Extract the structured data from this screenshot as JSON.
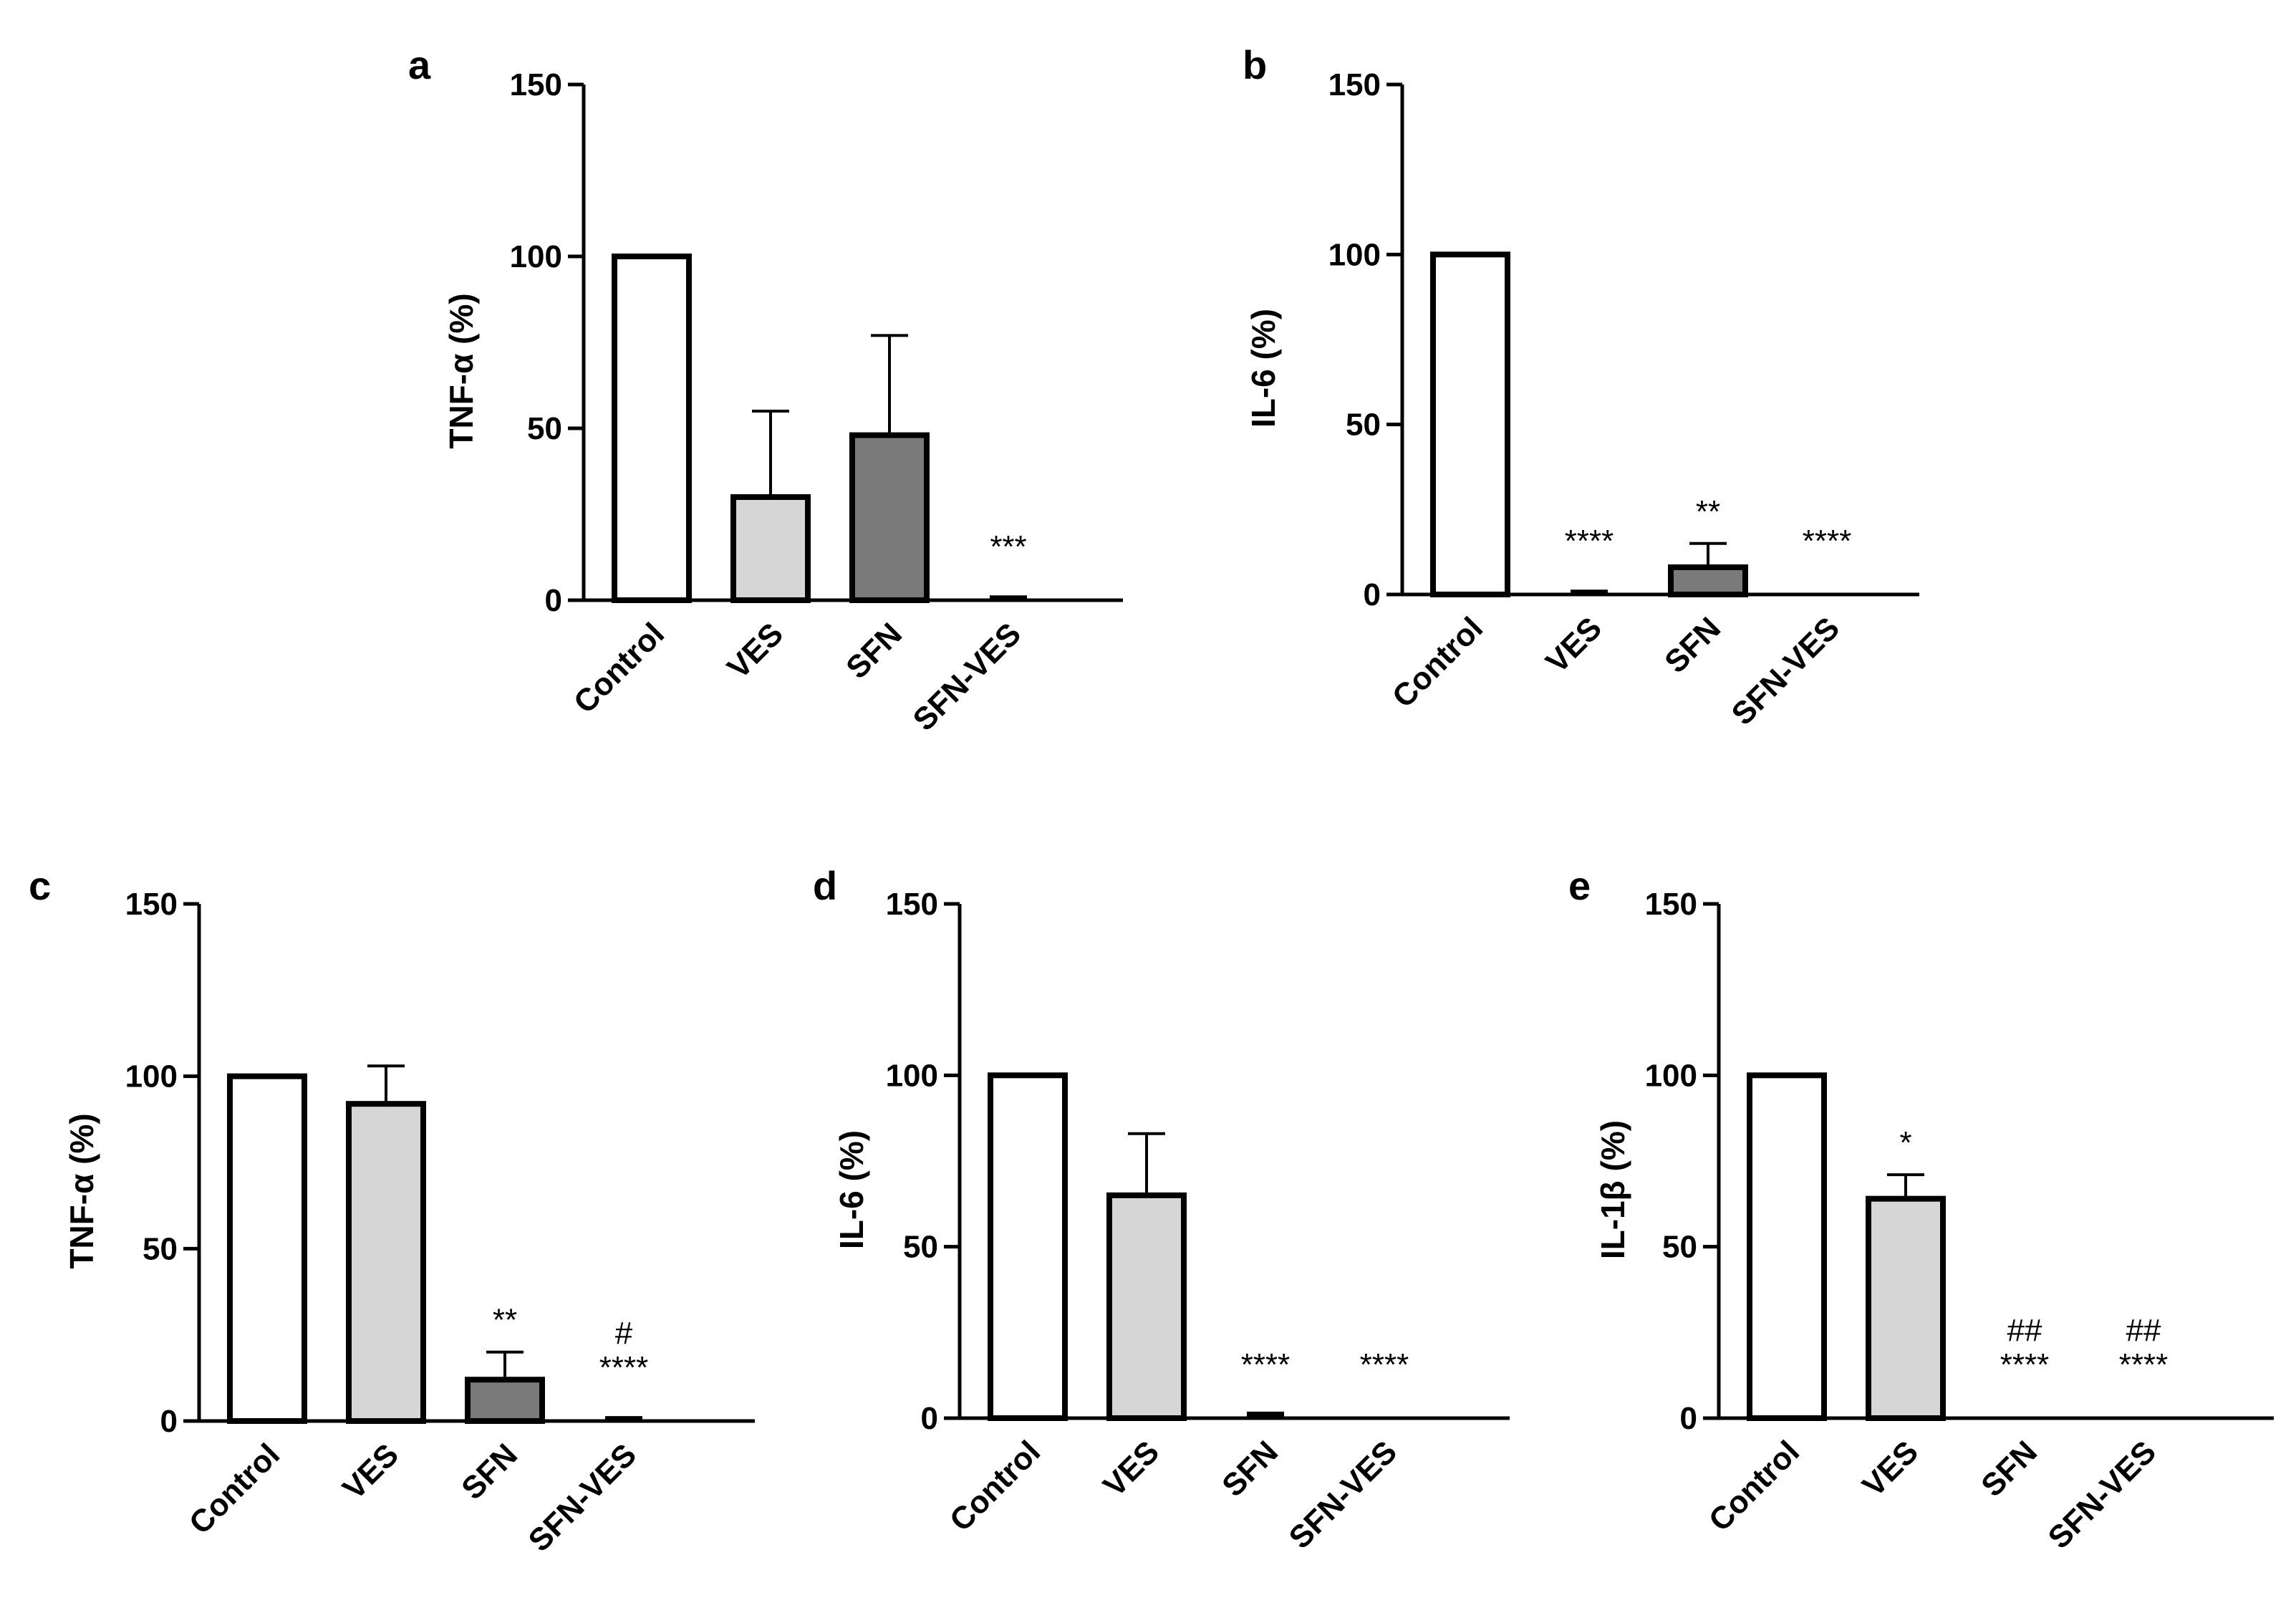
{
  "figure": {
    "style": {
      "fills": {
        "white": "#ffffff",
        "light": "#d6d6d6",
        "dark": "#7a7a7a"
      },
      "stroke": "#000000"
    }
  },
  "chart_data": [
    {
      "panel": "a",
      "type": "bar",
      "ylabel": "TNF-α (%)",
      "ylim": [
        0,
        150
      ],
      "yticks": [
        0,
        50,
        100,
        150
      ],
      "categories": [
        "Control",
        "VES",
        "SFN",
        "SFN-VES"
      ],
      "values": [
        100,
        30,
        48,
        0.5
      ],
      "errors": [
        0,
        25,
        29,
        0.5
      ],
      "fills": [
        "white",
        "light",
        "dark",
        "white"
      ],
      "annotations": [
        "",
        "",
        "",
        "***"
      ]
    },
    {
      "panel": "b",
      "type": "bar",
      "ylabel": "IL-6 (%)",
      "ylim": [
        0,
        150
      ],
      "yticks": [
        0,
        50,
        100,
        150
      ],
      "categories": [
        "Control",
        "VES",
        "SFN",
        "SFN-VES"
      ],
      "values": [
        100,
        0.5,
        8,
        0
      ],
      "errors": [
        0,
        0.5,
        7,
        0
      ],
      "fills": [
        "white",
        "light",
        "dark",
        "white"
      ],
      "annotations": [
        "",
        "****",
        "**",
        "****"
      ]
    },
    {
      "panel": "c",
      "type": "bar",
      "ylabel": "TNF-α (%)",
      "ylim": [
        0,
        150
      ],
      "yticks": [
        0,
        50,
        100,
        150
      ],
      "categories": [
        "Control",
        "VES",
        "SFN",
        "SFN-VES"
      ],
      "values": [
        100,
        92,
        12,
        0.5
      ],
      "errors": [
        0,
        11,
        8,
        0.5
      ],
      "fills": [
        "white",
        "light",
        "dark",
        "white"
      ],
      "annotations": [
        "",
        "",
        "**",
        "#\n****"
      ]
    },
    {
      "panel": "d",
      "type": "bar",
      "ylabel": "IL-6 (%)",
      "ylim": [
        0,
        150
      ],
      "yticks": [
        0,
        50,
        100,
        150
      ],
      "categories": [
        "Control",
        "VES",
        "SFN",
        "SFN-VES"
      ],
      "values": [
        100,
        65,
        0.5,
        0
      ],
      "errors": [
        0,
        18,
        1,
        0
      ],
      "fills": [
        "white",
        "light",
        "dark",
        "white"
      ],
      "annotations": [
        "",
        "",
        "****",
        "****"
      ]
    },
    {
      "panel": "e",
      "type": "bar",
      "ylabel": "IL-1β (%)",
      "ylim": [
        0,
        150
      ],
      "yticks": [
        0,
        50,
        100,
        150
      ],
      "categories": [
        "Control",
        "VES",
        "SFN",
        "SFN-VES"
      ],
      "values": [
        100,
        64,
        0,
        0
      ],
      "errors": [
        0,
        7,
        0,
        0
      ],
      "fills": [
        "white",
        "light",
        "dark",
        "white"
      ],
      "annotations": [
        "",
        "*",
        "##\n****",
        "##\n****"
      ]
    }
  ]
}
